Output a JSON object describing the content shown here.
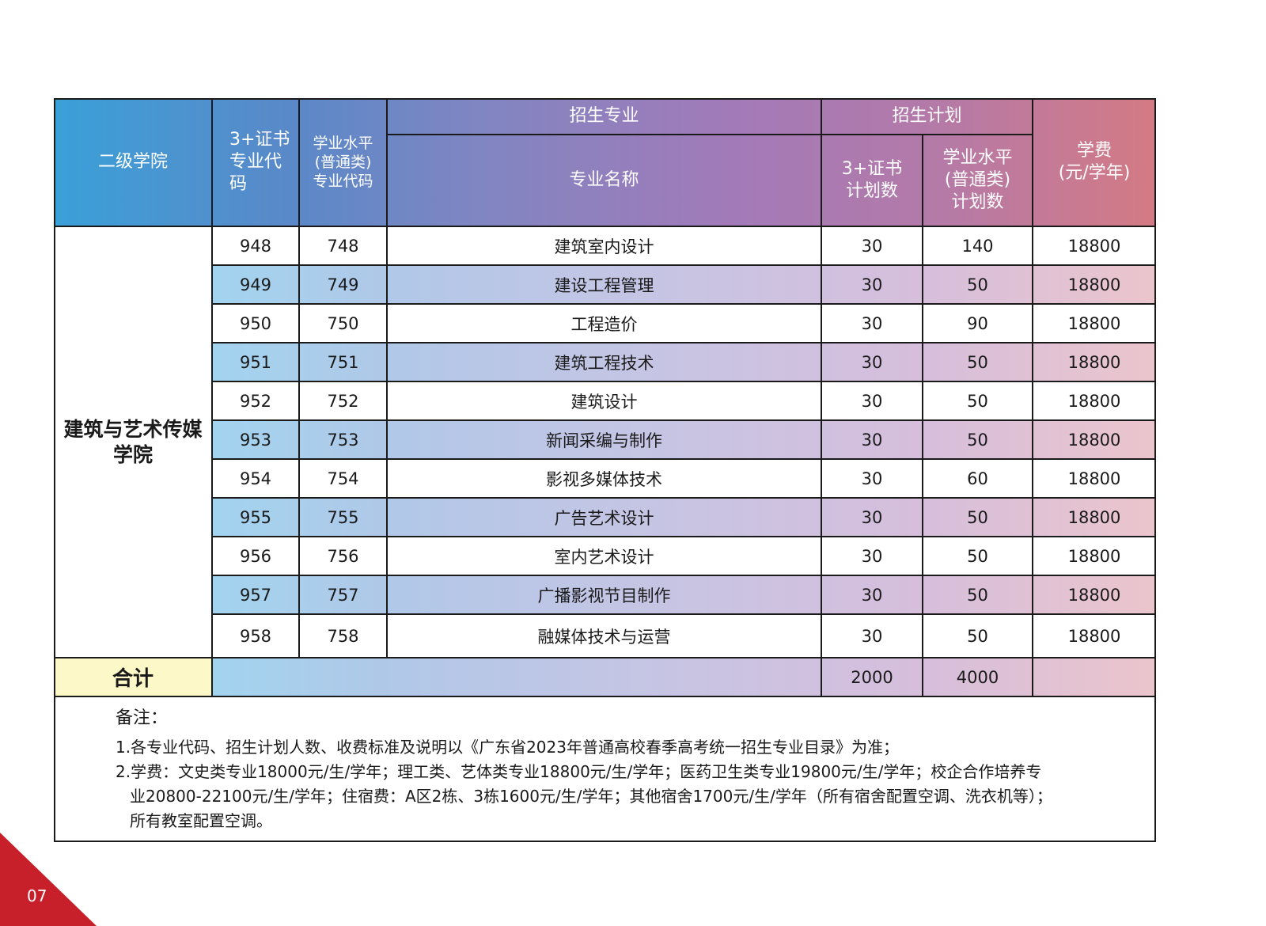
{
  "header": {
    "college": "二级学院",
    "code_cert": "3+证书\n专业代\n码",
    "code_general": "学业水平\n(普通类)\n专业代码",
    "major_group": "招生专业",
    "major_name": "专业名称",
    "plan_group": "招生计划",
    "plan_cert": "3+证书\n计划数",
    "plan_general": "学业水平\n(普通类)\n计划数",
    "tuition": "学费\n(元/学年)"
  },
  "college_name": "建筑与艺术传媒\n学院",
  "rows": [
    {
      "code_cert": "948",
      "code_general": "748",
      "major": "建筑室内设计",
      "plan_cert": "30",
      "plan_general": "140",
      "tuition": "18800"
    },
    {
      "code_cert": "949",
      "code_general": "749",
      "major": "建设工程管理",
      "plan_cert": "30",
      "plan_general": "50",
      "tuition": "18800"
    },
    {
      "code_cert": "950",
      "code_general": "750",
      "major": "工程造价",
      "plan_cert": "30",
      "plan_general": "90",
      "tuition": "18800"
    },
    {
      "code_cert": "951",
      "code_general": "751",
      "major": "建筑工程技术",
      "plan_cert": "30",
      "plan_general": "50",
      "tuition": "18800"
    },
    {
      "code_cert": "952",
      "code_general": "752",
      "major": "建筑设计",
      "plan_cert": "30",
      "plan_general": "50",
      "tuition": "18800"
    },
    {
      "code_cert": "953",
      "code_general": "753",
      "major": "新闻采编与制作",
      "plan_cert": "30",
      "plan_general": "50",
      "tuition": "18800"
    },
    {
      "code_cert": "954",
      "code_general": "754",
      "major": "影视多媒体技术",
      "plan_cert": "30",
      "plan_general": "60",
      "tuition": "18800"
    },
    {
      "code_cert": "955",
      "code_general": "755",
      "major": "广告艺术设计",
      "plan_cert": "30",
      "plan_general": "50",
      "tuition": "18800"
    },
    {
      "code_cert": "956",
      "code_general": "756",
      "major": "室内艺术设计",
      "plan_cert": "30",
      "plan_general": "50",
      "tuition": "18800"
    },
    {
      "code_cert": "957",
      "code_general": "757",
      "major": "广播影视节目制作",
      "plan_cert": "30",
      "plan_general": "50",
      "tuition": "18800"
    },
    {
      "code_cert": "958",
      "code_general": "758",
      "major": "融媒体技术与运营",
      "plan_cert": "30",
      "plan_general": "50",
      "tuition": "18800"
    }
  ],
  "total": {
    "label": "合计",
    "plan_cert": "2000",
    "plan_general": "4000"
  },
  "notes": {
    "title": "备注：",
    "line1": "1.各专业代码、招生计划人数、收费标准及说明以《广东省2023年普通高校春季高考统一招生专业目录》为准；",
    "line2a": "2.学费：文史类专业18000元/生/学年；理工类、艺体类专业18800元/生/学年；医药卫生类专业19800元/生/学年；校企合作培养专",
    "line2b": "业20800-22100元/生/学年；住宿费：A区2栋、3栋1600元/生/学年；其他宿舍1700元/生/学年（所有宿舍配置空调、洗衣机等）；",
    "line2c": "所有教室配置空调。"
  },
  "page_number": "07",
  "colors": {
    "header_start": "#3aa0d8",
    "header_end": "#d47a84",
    "total_label_bg": "#fdf8c8",
    "corner": "#c8202a"
  }
}
